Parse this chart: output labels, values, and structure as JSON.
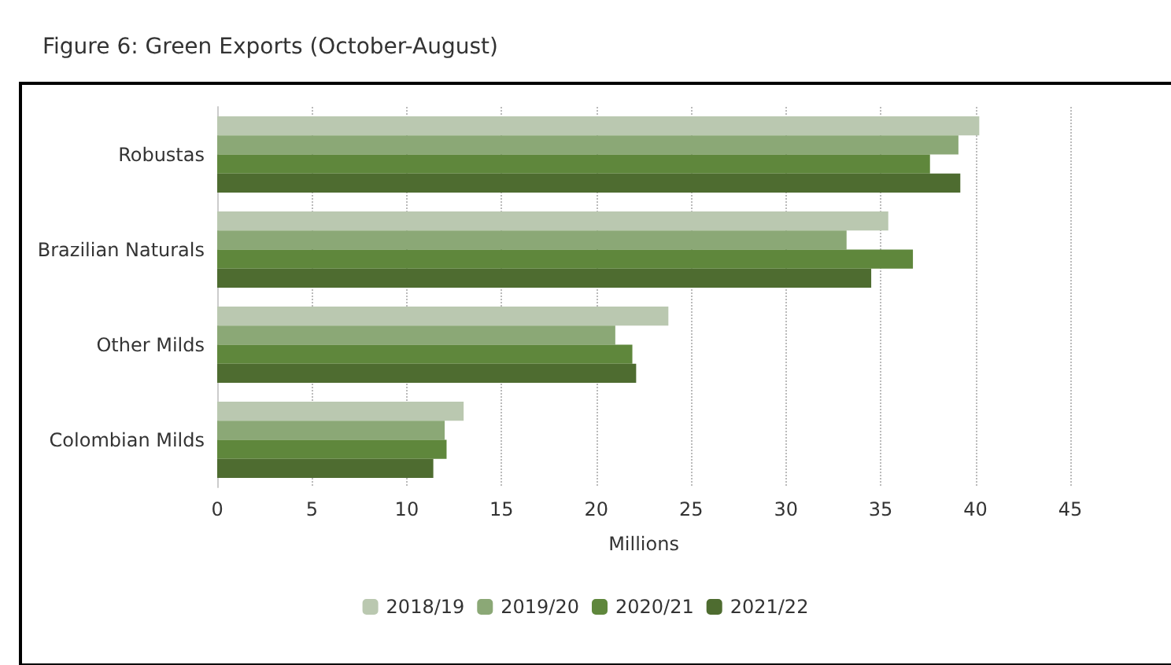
{
  "chart_data": {
    "type": "bar",
    "orientation": "horizontal",
    "title": "Figure 6: Green Exports (October-August)",
    "xlabel": "Millions",
    "categories": [
      "Robustas",
      "Brazilian Naturals",
      "Other Milds",
      "Colombian Milds"
    ],
    "series": [
      {
        "name": "2018/19",
        "color": "#bac8b0",
        "values": [
          40.2,
          35.4,
          23.8,
          13.0
        ]
      },
      {
        "name": "2019/20",
        "color": "#8ba876",
        "values": [
          39.1,
          33.2,
          21.0,
          12.0
        ]
      },
      {
        "name": "2020/21",
        "color": "#5f873c",
        "values": [
          37.6,
          36.7,
          21.9,
          12.1
        ]
      },
      {
        "name": "2021/22",
        "color": "#4e6c30",
        "values": [
          39.2,
          34.5,
          22.1,
          11.4
        ]
      }
    ],
    "xlim": [
      0,
      45
    ],
    "xticks": [
      0,
      5,
      10,
      15,
      20,
      25,
      30,
      35,
      40,
      45
    ],
    "grid": "x",
    "legend": "bottom"
  }
}
